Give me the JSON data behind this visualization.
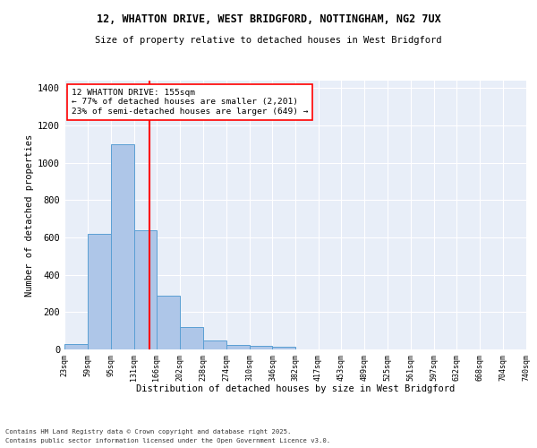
{
  "title1": "12, WHATTON DRIVE, WEST BRIDGFORD, NOTTINGHAM, NG2 7UX",
  "title2": "Size of property relative to detached houses in West Bridgford",
  "xlabel": "Distribution of detached houses by size in West Bridgford",
  "ylabel": "Number of detached properties",
  "bar_edges": [
    23,
    59,
    95,
    131,
    166,
    202,
    238,
    274,
    310,
    346,
    382,
    417,
    453,
    489,
    525,
    561,
    597,
    632,
    668,
    704,
    740
  ],
  "bar_heights": [
    30,
    620,
    1100,
    640,
    290,
    120,
    50,
    25,
    20,
    15,
    0,
    0,
    0,
    0,
    0,
    0,
    0,
    0,
    0,
    0
  ],
  "bar_color": "#aec6e8",
  "bar_edgecolor": "#5a9fd4",
  "vline_x": 155,
  "vline_color": "red",
  "annotation_title": "12 WHATTON DRIVE: 155sqm",
  "annotation_line1": "← 77% of detached houses are smaller (2,201)",
  "annotation_line2": "23% of semi-detached houses are larger (649) →",
  "annotation_box_color": "white",
  "annotation_box_edgecolor": "red",
  "ylim": [
    0,
    1440
  ],
  "yticks": [
    0,
    200,
    400,
    600,
    800,
    1000,
    1200,
    1400
  ],
  "tick_labels": [
    "23sqm",
    "59sqm",
    "95sqm",
    "131sqm",
    "166sqm",
    "202sqm",
    "238sqm",
    "274sqm",
    "310sqm",
    "346sqm",
    "382sqm",
    "417sqm",
    "453sqm",
    "489sqm",
    "525sqm",
    "561sqm",
    "597sqm",
    "632sqm",
    "668sqm",
    "704sqm",
    "740sqm"
  ],
  "background_color": "#e8eef8",
  "grid_color": "white",
  "footer1": "Contains HM Land Registry data © Crown copyright and database right 2025.",
  "footer2": "Contains public sector information licensed under the Open Government Licence v3.0."
}
